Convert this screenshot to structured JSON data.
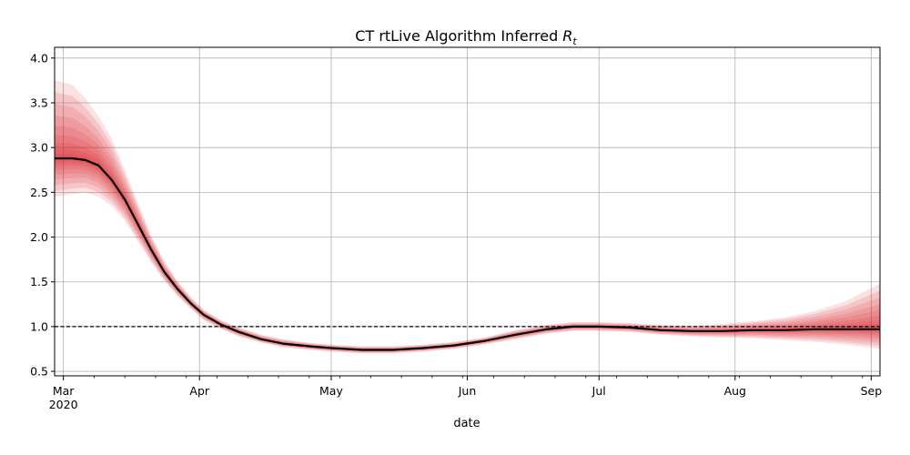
{
  "chart_data": {
    "type": "line",
    "title": "CT rtLive Algorithm Inferred",
    "title_symbol": "R",
    "title_subscript": "t",
    "xlabel": "date",
    "ylabel": "",
    "x_range": [
      "2020-02-28",
      "2020-09-03"
    ],
    "ylim": [
      0.45,
      4.12
    ],
    "grid": true,
    "x_ticks": [
      {
        "date": "2020-03-01",
        "label": "Mar",
        "sublabel": "2020"
      },
      {
        "date": "2020-04-01",
        "label": "Apr",
        "sublabel": ""
      },
      {
        "date": "2020-05-01",
        "label": "May",
        "sublabel": ""
      },
      {
        "date": "2020-06-01",
        "label": "Jun",
        "sublabel": ""
      },
      {
        "date": "2020-07-01",
        "label": "Jul",
        "sublabel": ""
      },
      {
        "date": "2020-08-01",
        "label": "Aug",
        "sublabel": ""
      },
      {
        "date": "2020-09-01",
        "label": "Sep",
        "sublabel": ""
      }
    ],
    "y_ticks": [
      {
        "value": 0.5,
        "label": "0.5"
      },
      {
        "value": 1.0,
        "label": "1.0"
      },
      {
        "value": 1.5,
        "label": "1.5"
      },
      {
        "value": 2.0,
        "label": "2.0"
      },
      {
        "value": 2.5,
        "label": "2.5"
      },
      {
        "value": 3.0,
        "label": "3.0"
      },
      {
        "value": 3.5,
        "label": "3.5"
      },
      {
        "value": 4.0,
        "label": "4.0"
      }
    ],
    "reference_line": {
      "y": 1.0,
      "style": "dashed",
      "color": "#000000"
    },
    "median_color": "#000000",
    "band_color": "#d7191c",
    "series": [
      {
        "points": [
          {
            "x": "2020-02-28",
            "y": 2.88,
            "lo": 2.45,
            "hi": 3.75
          },
          {
            "x": "2020-03-03",
            "y": 2.88,
            "lo": 2.48,
            "hi": 3.7
          },
          {
            "x": "2020-03-06",
            "y": 2.86,
            "lo": 2.5,
            "hi": 3.55
          },
          {
            "x": "2020-03-09",
            "y": 2.8,
            "lo": 2.45,
            "hi": 3.35
          },
          {
            "x": "2020-03-12",
            "y": 2.64,
            "lo": 2.35,
            "hi": 3.1
          },
          {
            "x": "2020-03-15",
            "y": 2.42,
            "lo": 2.18,
            "hi": 2.75
          },
          {
            "x": "2020-03-18",
            "y": 2.14,
            "lo": 1.95,
            "hi": 2.38
          },
          {
            "x": "2020-03-21",
            "y": 1.86,
            "lo": 1.72,
            "hi": 2.02
          },
          {
            "x": "2020-03-24",
            "y": 1.61,
            "lo": 1.51,
            "hi": 1.73
          },
          {
            "x": "2020-03-27",
            "y": 1.42,
            "lo": 1.34,
            "hi": 1.51
          },
          {
            "x": "2020-03-30",
            "y": 1.26,
            "lo": 1.2,
            "hi": 1.33
          },
          {
            "x": "2020-04-02",
            "y": 1.13,
            "lo": 1.07,
            "hi": 1.19
          },
          {
            "x": "2020-04-06",
            "y": 1.02,
            "lo": 0.97,
            "hi": 1.07
          },
          {
            "x": "2020-04-10",
            "y": 0.94,
            "lo": 0.89,
            "hi": 0.99
          },
          {
            "x": "2020-04-15",
            "y": 0.86,
            "lo": 0.82,
            "hi": 0.91
          },
          {
            "x": "2020-04-20",
            "y": 0.81,
            "lo": 0.77,
            "hi": 0.86
          },
          {
            "x": "2020-04-26",
            "y": 0.78,
            "lo": 0.74,
            "hi": 0.82
          },
          {
            "x": "2020-05-01",
            "y": 0.76,
            "lo": 0.72,
            "hi": 0.8
          },
          {
            "x": "2020-05-08",
            "y": 0.74,
            "lo": 0.7,
            "hi": 0.78
          },
          {
            "x": "2020-05-15",
            "y": 0.74,
            "lo": 0.7,
            "hi": 0.78
          },
          {
            "x": "2020-05-22",
            "y": 0.76,
            "lo": 0.72,
            "hi": 0.8
          },
          {
            "x": "2020-05-29",
            "y": 0.79,
            "lo": 0.75,
            "hi": 0.83
          },
          {
            "x": "2020-06-05",
            "y": 0.84,
            "lo": 0.8,
            "hi": 0.88
          },
          {
            "x": "2020-06-12",
            "y": 0.91,
            "lo": 0.86,
            "hi": 0.96
          },
          {
            "x": "2020-06-19",
            "y": 0.97,
            "lo": 0.92,
            "hi": 1.02
          },
          {
            "x": "2020-06-25",
            "y": 1.0,
            "lo": 0.95,
            "hi": 1.05
          },
          {
            "x": "2020-07-01",
            "y": 1.0,
            "lo": 0.95,
            "hi": 1.05
          },
          {
            "x": "2020-07-08",
            "y": 0.99,
            "lo": 0.94,
            "hi": 1.04
          },
          {
            "x": "2020-07-15",
            "y": 0.96,
            "lo": 0.91,
            "hi": 1.02
          },
          {
            "x": "2020-07-22",
            "y": 0.95,
            "lo": 0.89,
            "hi": 1.01
          },
          {
            "x": "2020-07-29",
            "y": 0.95,
            "lo": 0.88,
            "hi": 1.03
          },
          {
            "x": "2020-08-05",
            "y": 0.96,
            "lo": 0.87,
            "hi": 1.06
          },
          {
            "x": "2020-08-12",
            "y": 0.96,
            "lo": 0.85,
            "hi": 1.1
          },
          {
            "x": "2020-08-19",
            "y": 0.97,
            "lo": 0.83,
            "hi": 1.17
          },
          {
            "x": "2020-08-26",
            "y": 0.97,
            "lo": 0.8,
            "hi": 1.28
          },
          {
            "x": "2020-09-03",
            "y": 0.97,
            "lo": 0.75,
            "hi": 1.48
          }
        ]
      }
    ]
  }
}
